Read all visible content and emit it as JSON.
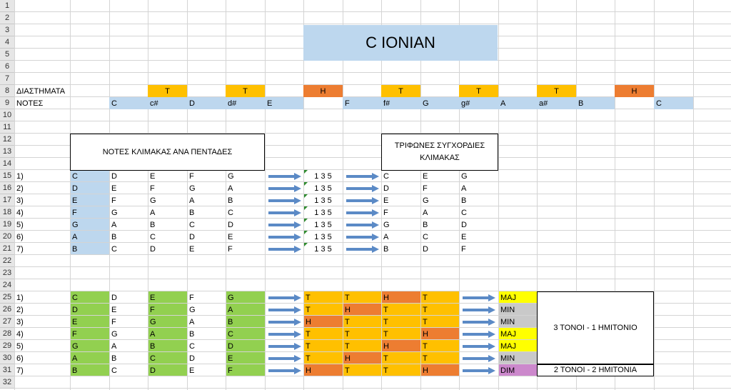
{
  "sheet": {
    "row_numbers": [
      "1",
      "2",
      "3",
      "4",
      "5",
      "6",
      "7",
      "8",
      "9",
      "10",
      "11",
      "12",
      "13",
      "14",
      "15",
      "16",
      "17",
      "18",
      "19",
      "20",
      "21",
      "22",
      "23",
      "24",
      "25",
      "26",
      "27",
      "28",
      "29",
      "30",
      "31",
      "32"
    ],
    "title": "C IONIAN",
    "intervals_label": "ΔΙΑΣΤΗΜΑΤΑ",
    "notes_label": "ΝΟΤΕΣ",
    "intervals": [
      "T",
      "T",
      "H",
      "T",
      "T",
      "T",
      "H"
    ],
    "chromatic": [
      "C",
      "c#",
      "D",
      "d#",
      "E",
      "",
      "F",
      "f#",
      "G",
      "g#",
      "A",
      "a#",
      "B",
      "",
      "C"
    ],
    "box_pentads": "ΝΟΤΕΣ ΚΛΙΜΑΚΑΣ ΑΝΑ ΠΕΝΤΑΔΕΣ",
    "box_triads_line1": "ΤΡΙΦΩΝΕΣ ΣΥΓΧΟΡΔΙΕΣ",
    "box_triads_line2": "ΚΛΙΜΑΚΑΣ",
    "triad_formula": "1 3 5",
    "pentads": [
      {
        "n": "1)",
        "notes": [
          "C",
          "D",
          "E",
          "F",
          "G"
        ],
        "triad": [
          "C",
          "E",
          "G"
        ]
      },
      {
        "n": "2)",
        "notes": [
          "D",
          "E",
          "F",
          "G",
          "A"
        ],
        "triad": [
          "D",
          "F",
          "A"
        ]
      },
      {
        "n": "3)",
        "notes": [
          "E",
          "F",
          "G",
          "A",
          "B"
        ],
        "triad": [
          "E",
          "G",
          "B"
        ]
      },
      {
        "n": "4)",
        "notes": [
          "F",
          "G",
          "A",
          "B",
          "C"
        ],
        "triad": [
          "F",
          "A",
          "C"
        ]
      },
      {
        "n": "5)",
        "notes": [
          "G",
          "A",
          "B",
          "C",
          "D"
        ],
        "triad": [
          "G",
          "B",
          "D"
        ]
      },
      {
        "n": "6)",
        "notes": [
          "A",
          "B",
          "C",
          "D",
          "E"
        ],
        "triad": [
          "A",
          "C",
          "E"
        ]
      },
      {
        "n": "7)",
        "notes": [
          "B",
          "C",
          "D",
          "E",
          "F"
        ],
        "triad": [
          "B",
          "D",
          "F"
        ]
      }
    ],
    "chords": [
      {
        "n": "1)",
        "notes": [
          "C",
          "D",
          "E",
          "F",
          "G"
        ],
        "steps": [
          "T",
          "T",
          "H",
          "T"
        ],
        "quality": "MAJ"
      },
      {
        "n": "2)",
        "notes": [
          "D",
          "E",
          "F",
          "G",
          "A"
        ],
        "steps": [
          "T",
          "H",
          "T",
          "T"
        ],
        "quality": "MIN"
      },
      {
        "n": "3)",
        "notes": [
          "E",
          "F",
          "G",
          "A",
          "B"
        ],
        "steps": [
          "H",
          "T",
          "T",
          "T"
        ],
        "quality": "MIN"
      },
      {
        "n": "4)",
        "notes": [
          "F",
          "G",
          "A",
          "B",
          "C"
        ],
        "steps": [
          "T",
          "T",
          "T",
          "H"
        ],
        "quality": "MAJ"
      },
      {
        "n": "5)",
        "notes": [
          "G",
          "A",
          "B",
          "C",
          "D"
        ],
        "steps": [
          "T",
          "T",
          "H",
          "T"
        ],
        "quality": "MAJ"
      },
      {
        "n": "6)",
        "notes": [
          "A",
          "B",
          "C",
          "D",
          "E"
        ],
        "steps": [
          "T",
          "H",
          "T",
          "T"
        ],
        "quality": "MIN"
      },
      {
        "n": "7)",
        "notes": [
          "B",
          "C",
          "D",
          "E",
          "F"
        ],
        "steps": [
          "H",
          "T",
          "T",
          "H"
        ],
        "quality": "DIM"
      }
    ],
    "summary_1": "3 ΤΟΝΟΙ - 1 ΗΜΙΤΟΝΙΟ",
    "summary_2": "2 ΤΟΝΟΙ - 2 ΗΜΙΤΟΝΙΑ",
    "colors": {
      "blue": "#bdd7ee",
      "gold": "#ffc000",
      "orange": "#ed7d31",
      "green": "#92d050",
      "yellow": "#ffff00",
      "gray": "#c9c9c9",
      "purple": "#cc88cc",
      "arrow": "#5b8ac6"
    }
  }
}
